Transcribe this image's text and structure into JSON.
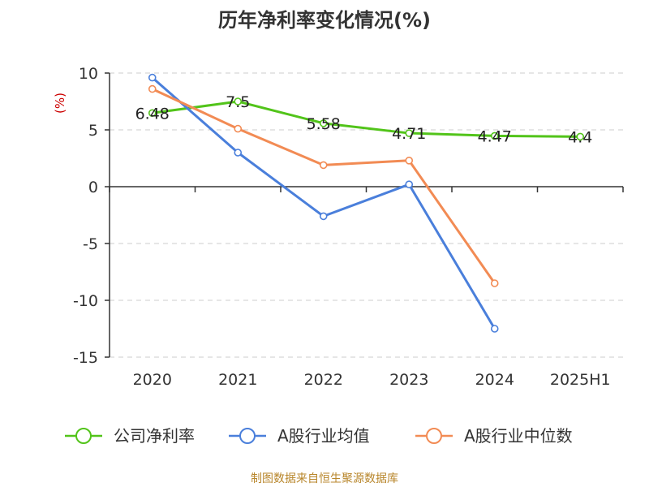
{
  "chart_data": {
    "type": "line",
    "title": "历年净利率变化情况(%)",
    "ylabel": "(%)",
    "xlabel": "",
    "categories": [
      "2020",
      "2021",
      "2022",
      "2023",
      "2024",
      "2025H1"
    ],
    "ylim": [
      -15,
      10
    ],
    "yticks": [
      10,
      5,
      0,
      -5,
      -10,
      -15
    ],
    "ytick_labels": [
      "10",
      "5",
      "0",
      "-5",
      "-10",
      "-15"
    ],
    "grid": true,
    "legend_position": "bottom",
    "series": [
      {
        "name": "公司净利率",
        "color": "#52c41a",
        "values": [
          6.48,
          7.5,
          5.58,
          4.71,
          4.47,
          4.4
        ],
        "labels": [
          "6.48",
          "7.5",
          "5.58",
          "4.71",
          "4.47",
          "4.4"
        ]
      },
      {
        "name": "A股行业均值",
        "color": "#4a7fdb",
        "values": [
          9.6,
          3.0,
          -2.6,
          0.2,
          -12.5,
          null
        ]
      },
      {
        "name": "A股行业中位数",
        "color": "#f28b54",
        "values": [
          8.6,
          5.1,
          1.9,
          2.3,
          -8.5,
          null
        ]
      }
    ]
  },
  "source": "制图数据来自恒生聚源数据库"
}
